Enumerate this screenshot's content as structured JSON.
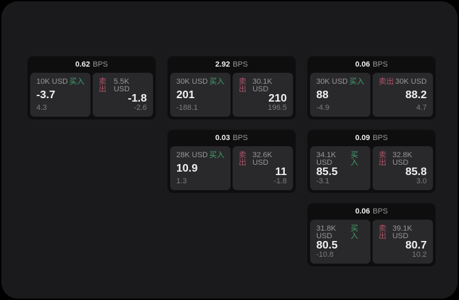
{
  "colors": {
    "page_bg": "#000000",
    "panel_bg": "#1a1a1c",
    "card_bg": "#0e0e0f",
    "tile_bg": "#29292b",
    "text_primary": "#f0f0f1",
    "text_secondary": "#98989c",
    "text_dim": "#7e7e82",
    "buy_green": "#41a56d",
    "sell_red": "#b05468"
  },
  "labels": {
    "bps_suffix": "BPS",
    "buy": "买入",
    "sell": "卖出"
  },
  "cards": [
    {
      "bps": "0.62",
      "buy": {
        "size": "10K USD",
        "price": "-3.7",
        "delta": "4.3"
      },
      "sell": {
        "size": "5.5K USD",
        "price": "-1.8",
        "delta": "-2.6"
      }
    },
    {
      "bps": "2.92",
      "buy": {
        "size": "30K USD",
        "price": "201",
        "delta": "-188.1"
      },
      "sell": {
        "size": "30.1K USD",
        "price": "210",
        "delta": "196.5"
      }
    },
    {
      "bps": "0.06",
      "buy": {
        "size": "30K USD",
        "price": "88",
        "delta": "-4.9"
      },
      "sell": {
        "size": "30K USD",
        "price": "88.2",
        "delta": "4.7"
      }
    },
    {
      "bps": "0.03",
      "buy": {
        "size": "28K USD",
        "price": "10.9",
        "delta": "1.3"
      },
      "sell": {
        "size": "32.6K USD",
        "price": "11",
        "delta": "-1.8"
      }
    },
    {
      "bps": "0.09",
      "buy": {
        "size": "34.1K USD",
        "price": "85.5",
        "delta": "-3.1"
      },
      "sell": {
        "size": "32.8K USD",
        "price": "85.8",
        "delta": "3.0"
      }
    },
    {
      "bps": "0.06",
      "buy": {
        "size": "31.8K USD",
        "price": "80.5",
        "delta": "-10.8"
      },
      "sell": {
        "size": "39.1K USD",
        "price": "80.7",
        "delta": "10.2"
      }
    }
  ]
}
